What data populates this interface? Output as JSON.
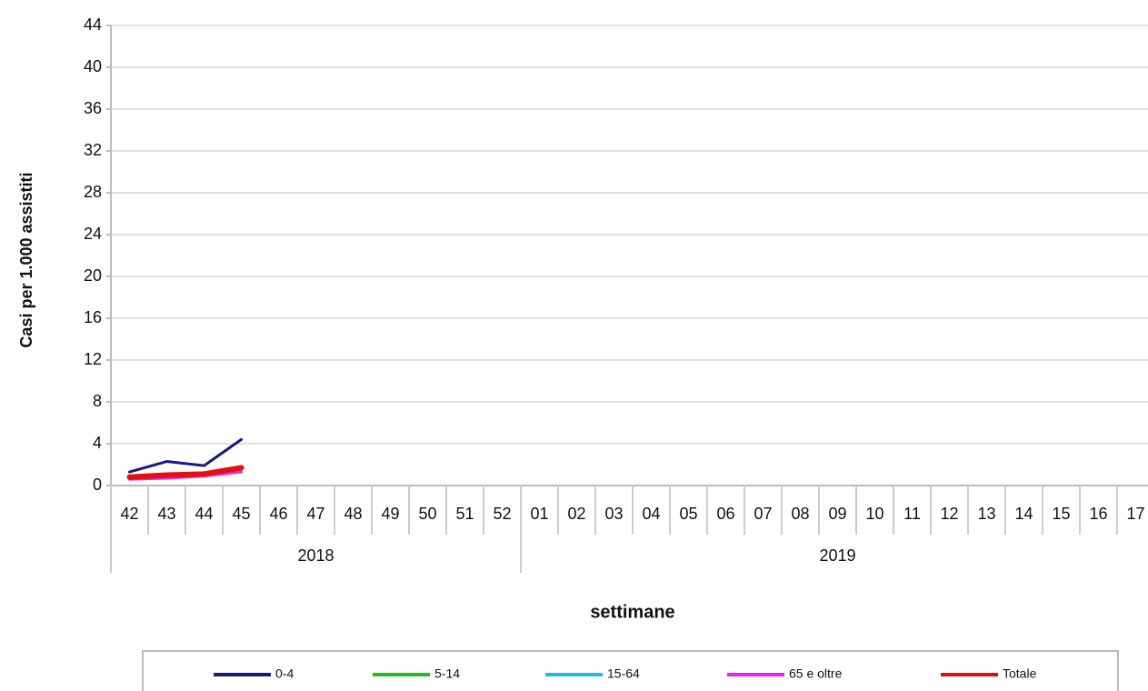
{
  "chart_data": {
    "type": "line",
    "y_label": "Casi per 1.000 assistiti",
    "x_label": "settimane",
    "categories": [
      "42",
      "43",
      "44",
      "45",
      "46",
      "47",
      "48",
      "49",
      "50",
      "51",
      "52",
      "01",
      "02",
      "03",
      "04",
      "05",
      "06",
      "07",
      "08",
      "09",
      "10",
      "11",
      "12",
      "13",
      "14",
      "15",
      "16",
      "17"
    ],
    "category_groups": [
      {
        "label": "2018",
        "count": 11
      },
      {
        "label": "2019",
        "count": 17
      }
    ],
    "series": [
      {
        "name": "0-4",
        "color": "#1a1a80",
        "width": 3,
        "values": [
          1.3,
          2.3,
          1.9,
          4.4,
          null,
          null,
          null,
          null,
          null,
          null,
          null,
          null,
          null,
          null,
          null,
          null,
          null,
          null,
          null,
          null,
          null,
          null,
          null,
          null,
          null,
          null,
          null,
          null
        ]
      },
      {
        "name": "5-14",
        "color": "#22bb22",
        "width": 3,
        "values": [
          0.8,
          1.0,
          1.1,
          1.6,
          null,
          null,
          null,
          null,
          null,
          null,
          null,
          null,
          null,
          null,
          null,
          null,
          null,
          null,
          null,
          null,
          null,
          null,
          null,
          null,
          null,
          null,
          null,
          null
        ]
      },
      {
        "name": "15-64",
        "color": "#22bbee",
        "width": 3,
        "values": [
          0.7,
          0.9,
          1.0,
          1.5,
          null,
          null,
          null,
          null,
          null,
          null,
          null,
          null,
          null,
          null,
          null,
          null,
          null,
          null,
          null,
          null,
          null,
          null,
          null,
          null,
          null,
          null,
          null,
          null
        ]
      },
      {
        "name": "65 e oltre",
        "color": "#ee22ee",
        "width": 3,
        "values": [
          0.6,
          0.7,
          0.9,
          1.3,
          null,
          null,
          null,
          null,
          null,
          null,
          null,
          null,
          null,
          null,
          null,
          null,
          null,
          null,
          null,
          null,
          null,
          null,
          null,
          null,
          null,
          null,
          null,
          null
        ]
      },
      {
        "name": "Totale",
        "color": "#e01010",
        "width": 6,
        "values": [
          0.8,
          1.0,
          1.1,
          1.7,
          null,
          null,
          null,
          null,
          null,
          null,
          null,
          null,
          null,
          null,
          null,
          null,
          null,
          null,
          null,
          null,
          null,
          null,
          null,
          null,
          null,
          null,
          null,
          null
        ]
      }
    ],
    "ylim": [
      0,
      44
    ],
    "yticks": [
      0,
      4,
      8,
      12,
      16,
      20,
      24,
      28,
      32,
      36,
      40,
      44
    ],
    "grid": true,
    "legend": "bottom"
  }
}
